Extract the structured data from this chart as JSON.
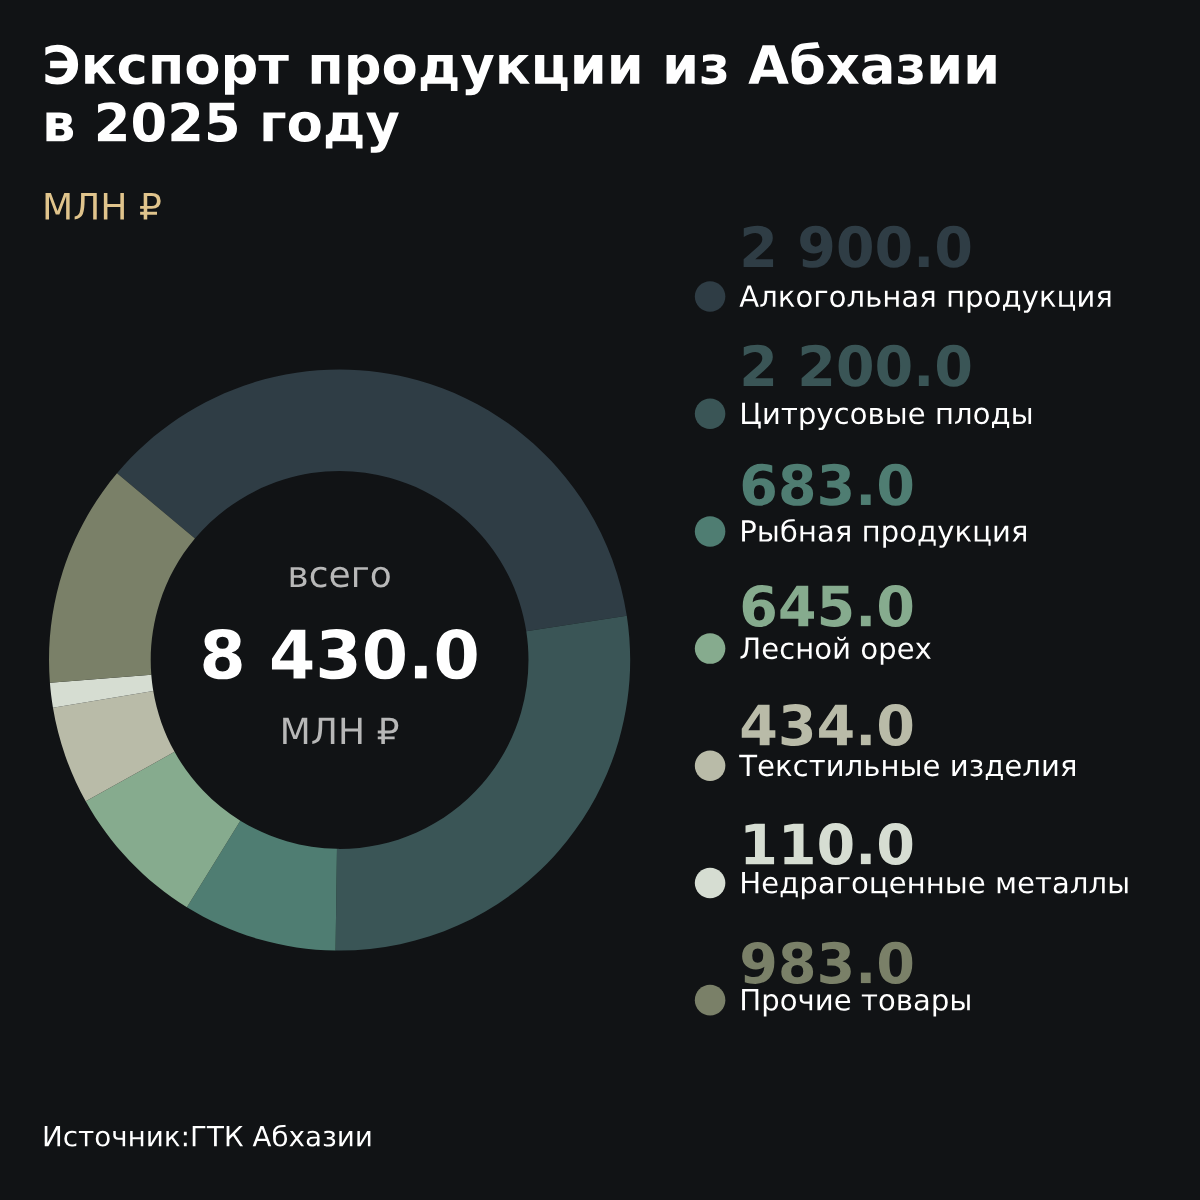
{
  "chart_data": {
    "type": "donut",
    "title": "Экспорт продукции из Абхазии\nв 2025 году",
    "subtitle": "МЛН ₽",
    "categories": [
      "Алкогольная продукция",
      "Цитрусовые плоды",
      "Рыбная продукция",
      "Лесной орех",
      "Текстильные изделия",
      "Недрагоценные металлы",
      "Прочие товары"
    ],
    "values": [
      2900,
      2200,
      683,
      645,
      434,
      110,
      983
    ],
    "value_labels": [
      "2 900.0",
      "2 200.0",
      "683.0",
      "645.0",
      "434.0",
      "110.0",
      "983.0"
    ],
    "colors": [
      "#2f3d45",
      "#3a5556",
      "#4f7d72",
      "#86ab8e",
      "#b9bba8",
      "#d6ddd2",
      "#7a8068"
    ],
    "legend": "right",
    "annotations": [
      "всего",
      "8 430.0",
      "МЛН ₽",
      "Источник:ГТК Абхазии"
    ]
  }
}
